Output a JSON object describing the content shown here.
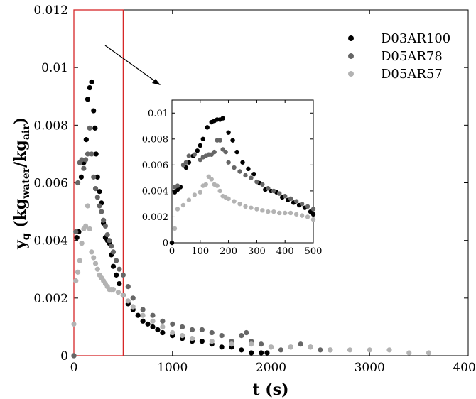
{
  "chart_data": [
    {
      "type": "scatter",
      "xlabel": "t (s)",
      "ylabel": {
        "main": "y",
        "sub_g": "g",
        "open": " (kg",
        "sub_water": "water",
        "slash": "/kg",
        "sub_air": "air",
        "close": ")"
      },
      "xlim": [
        0,
        4000
      ],
      "ylim": [
        0,
        0.012
      ],
      "x_ticks": [
        0,
        1000,
        2000,
        3000,
        4000
      ],
      "x_tick_labels": [
        "0",
        "1000",
        "2000",
        "3000",
        "4000"
      ],
      "y_ticks": [
        0,
        0.002,
        0.004,
        0.006,
        0.008,
        0.01,
        0.012
      ],
      "y_tick_labels": [
        "0",
        "0.002",
        "0.004",
        "0.006",
        "0.008",
        "0.01",
        "0.012"
      ],
      "grid": false,
      "legend_position": "top-right",
      "zoom_region": {
        "x": [
          0,
          500
        ],
        "y": [
          0,
          0.012
        ],
        "color": "#d62728"
      },
      "series": [
        {
          "name": "D03AR100",
          "color": "#000000",
          "x": [
            0,
            30,
            50,
            75,
            100,
            125,
            140,
            160,
            180,
            200,
            215,
            225,
            240,
            260,
            280,
            300,
            320,
            340,
            360,
            380,
            400,
            430,
            460,
            500,
            550,
            600,
            650,
            700,
            750,
            800,
            850,
            900,
            1000,
            1100,
            1200,
            1300,
            1400,
            1500,
            1600,
            1700,
            1800,
            1900,
            1960
          ],
          "y": [
            0.0,
            0.0041,
            0.0043,
            0.0062,
            0.0067,
            0.0075,
            0.0089,
            0.0093,
            0.0095,
            0.0085,
            0.0079,
            0.007,
            0.0062,
            0.0057,
            0.0053,
            0.0046,
            0.0041,
            0.004,
            0.0039,
            0.0035,
            0.0031,
            0.0028,
            0.0025,
            0.0021,
            0.0018,
            0.0016,
            0.0014,
            0.0012,
            0.0011,
            0.001,
            0.0009,
            0.0008,
            0.0007,
            0.0006,
            0.0005,
            0.0005,
            0.0004,
            0.0003,
            0.0003,
            0.0002,
            0.0001,
            0.0001,
            0.0001
          ]
        },
        {
          "name": "D05AR78",
          "color": "#666666",
          "x": [
            0,
            20,
            40,
            60,
            80,
            100,
            120,
            140,
            160,
            180,
            200,
            220,
            240,
            260,
            280,
            300,
            320,
            340,
            360,
            380,
            400,
            430,
            460,
            500,
            550,
            600,
            700,
            800,
            900,
            1000,
            1100,
            1200,
            1300,
            1400,
            1500,
            1600,
            1700,
            1750,
            1800,
            1900,
            2000,
            2100,
            2200,
            2300,
            2400,
            2500,
            2600
          ],
          "y": [
            0.0,
            0.0043,
            0.006,
            0.0067,
            0.0068,
            0.0065,
            0.0068,
            0.007,
            0.0079,
            0.007,
            0.0062,
            0.0058,
            0.0055,
            0.0052,
            0.005,
            0.0047,
            0.0045,
            0.0042,
            0.004,
            0.0038,
            0.0036,
            0.0033,
            0.003,
            0.0028,
            0.0024,
            0.002,
            0.0016,
            0.0014,
            0.0012,
            0.0011,
            0.001,
            0.0009,
            0.0009,
            0.0008,
            0.0007,
            0.0005,
            0.0007,
            0.0008,
            0.0005,
            0.0004,
            0.0003,
            0.0002,
            0.0003,
            0.0004,
            0.0003,
            0.0002,
            0.0002
          ]
        },
        {
          "name": "D05AR57",
          "color": "#b3b3b3",
          "x": [
            0,
            20,
            40,
            60,
            80,
            100,
            120,
            140,
            160,
            180,
            200,
            220,
            240,
            260,
            280,
            300,
            320,
            340,
            360,
            380,
            400,
            450,
            500,
            550,
            600,
            700,
            800,
            900,
            1000,
            1100,
            1200,
            1400,
            1600,
            1800,
            2000,
            2200,
            2400,
            2600,
            2800,
            3000,
            3200,
            3400,
            3600
          ],
          "y": [
            0.0011,
            0.0026,
            0.0029,
            0.0033,
            0.0039,
            0.0044,
            0.0045,
            0.0052,
            0.0044,
            0.0036,
            0.0034,
            0.0032,
            0.003,
            0.0028,
            0.0027,
            0.0026,
            0.0025,
            0.0024,
            0.0023,
            0.0023,
            0.0023,
            0.0022,
            0.0021,
            0.0019,
            0.0017,
            0.0014,
            0.0012,
            0.001,
            0.0008,
            0.0007,
            0.0006,
            0.0005,
            0.0004,
            0.0004,
            0.0003,
            0.0003,
            0.0003,
            0.0002,
            0.0002,
            0.0002,
            0.0002,
            0.0001,
            0.0001
          ]
        }
      ]
    },
    {
      "type": "scatter",
      "role": "inset",
      "xlim": [
        0,
        500
      ],
      "ylim": [
        0,
        0.011
      ],
      "x_ticks": [
        0,
        100,
        200,
        300,
        400,
        500
      ],
      "x_tick_labels": [
        "0",
        "100",
        "200",
        "300",
        "400",
        "500"
      ],
      "y_ticks": [
        0,
        0.002,
        0.004,
        0.006,
        0.008,
        0.01
      ],
      "y_tick_labels": [
        "0",
        "0.002",
        "0.004",
        "0.006",
        "0.008",
        "0.01"
      ],
      "grid": false,
      "series": [
        {
          "name": "D03AR100",
          "color": "#000000",
          "x": [
            0,
            10,
            20,
            30,
            50,
            60,
            75,
            90,
            100,
            110,
            125,
            140,
            150,
            160,
            170,
            180,
            200,
            215,
            230,
            250,
            270,
            290,
            310,
            330,
            350,
            370,
            390,
            410,
            430,
            450,
            470,
            490,
            500
          ],
          "y": [
            0.0,
            0.0039,
            0.0041,
            0.0043,
            0.0058,
            0.0062,
            0.0067,
            0.0071,
            0.0075,
            0.008,
            0.0089,
            0.0093,
            0.0094,
            0.0095,
            0.0095,
            0.0096,
            0.0085,
            0.0079,
            0.007,
            0.0062,
            0.0057,
            0.0053,
            0.0046,
            0.0041,
            0.004,
            0.0039,
            0.0035,
            0.0033,
            0.0031,
            0.0029,
            0.0027,
            0.0024,
            0.0022
          ]
        },
        {
          "name": "D05AR78",
          "color": "#666666",
          "x": [
            10,
            20,
            40,
            50,
            60,
            80,
            100,
            110,
            120,
            130,
            140,
            150,
            160,
            170,
            180,
            190,
            200,
            220,
            240,
            260,
            280,
            300,
            320,
            340,
            360,
            380,
            400,
            420,
            440,
            460,
            480,
            500
          ],
          "y": [
            0.0043,
            0.0044,
            0.006,
            0.0062,
            0.0067,
            0.0068,
            0.0064,
            0.0066,
            0.0067,
            0.0068,
            0.0068,
            0.007,
            0.0079,
            0.0079,
            0.0072,
            0.007,
            0.0062,
            0.0058,
            0.0055,
            0.0052,
            0.005,
            0.0047,
            0.0045,
            0.0042,
            0.004,
            0.0038,
            0.0036,
            0.0034,
            0.0032,
            0.003,
            0.0028,
            0.0026
          ]
        },
        {
          "name": "D05AR57",
          "color": "#b3b3b3",
          "x": [
            10,
            20,
            40,
            60,
            80,
            100,
            110,
            120,
            130,
            140,
            150,
            160,
            170,
            180,
            190,
            200,
            220,
            240,
            260,
            280,
            300,
            320,
            340,
            360,
            380,
            400,
            420,
            440,
            460,
            480,
            500
          ],
          "y": [
            0.0011,
            0.0026,
            0.0029,
            0.0033,
            0.0037,
            0.0039,
            0.0044,
            0.0045,
            0.0051,
            0.0049,
            0.0045,
            0.0044,
            0.004,
            0.0036,
            0.0035,
            0.0034,
            0.0032,
            0.003,
            0.0028,
            0.0027,
            0.0026,
            0.0025,
            0.0024,
            0.0024,
            0.0023,
            0.0023,
            0.0023,
            0.0022,
            0.0021,
            0.002,
            0.0018
          ]
        }
      ]
    }
  ]
}
